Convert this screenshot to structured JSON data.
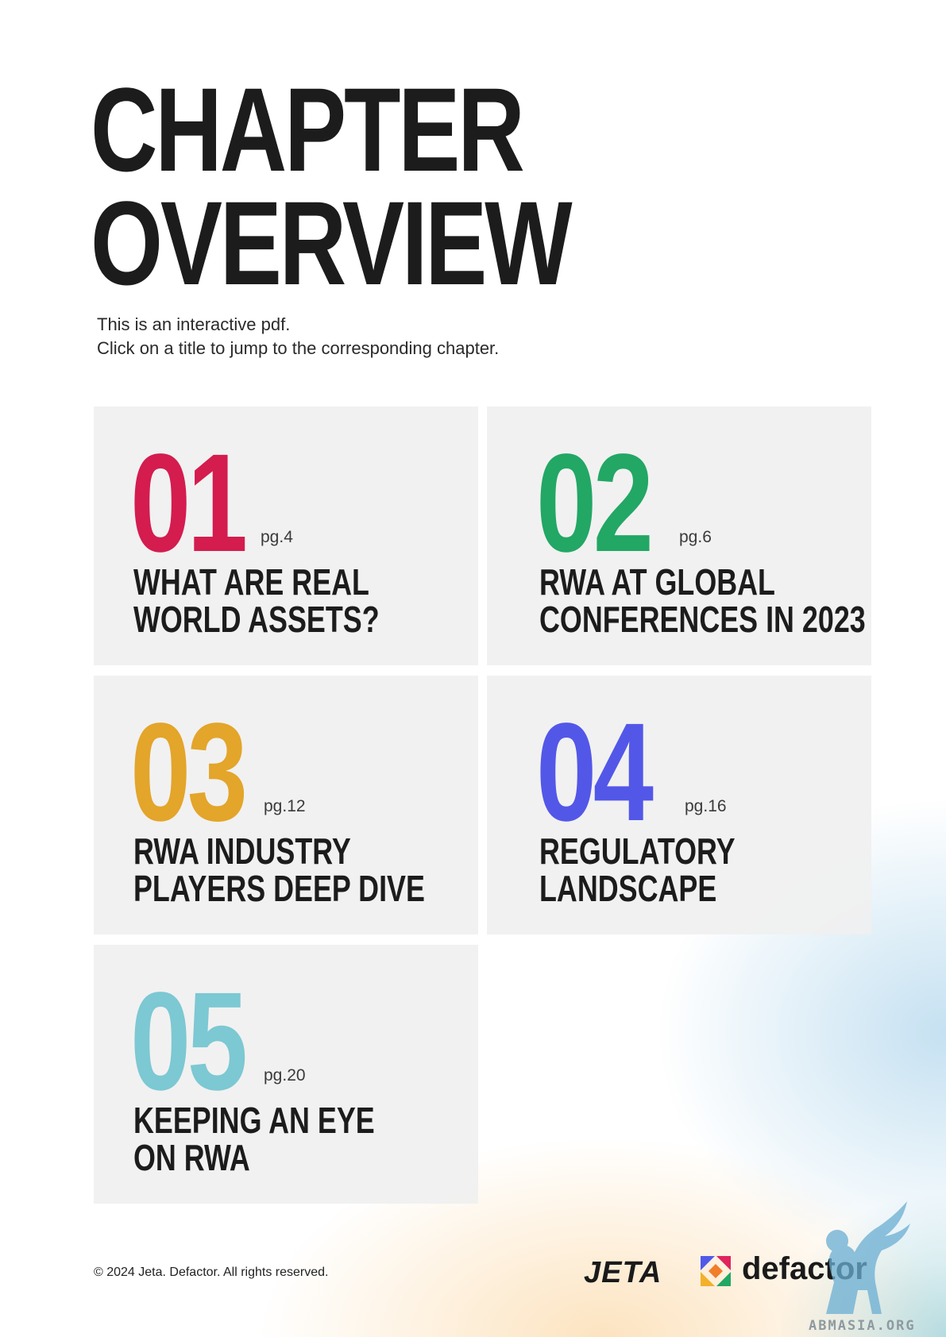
{
  "page": {
    "title_lines": [
      "CHAPTER",
      "OVERVIEW"
    ],
    "intro_lines": [
      "This is an interactive pdf.",
      "Click on a title to jump to the corresponding chapter."
    ]
  },
  "chapters": [
    {
      "number": "01",
      "page": "pg.4",
      "title_lines": [
        "WHAT ARE REAL",
        "WORLD ASSETS?"
      ],
      "color": "#D41C4E"
    },
    {
      "number": "02",
      "page": "pg.6",
      "title_lines": [
        "RWA AT GLOBAL",
        "CONFERENCES IN 2023"
      ],
      "color": "#22A765"
    },
    {
      "number": "03",
      "page": "pg.12",
      "title_lines": [
        "RWA INDUSTRY",
        "PLAYERS DEEP DIVE"
      ],
      "color": "#E3A52A"
    },
    {
      "number": "04",
      "page": "pg.16",
      "title_lines": [
        "REGULATORY",
        "LANDSCAPE"
      ],
      "color": "#5357E8"
    },
    {
      "number": "05",
      "page": "pg.20",
      "title_lines": [
        "KEEPING AN EYE",
        "ON RWA"
      ],
      "color": "#7CC8D3"
    }
  ],
  "footer": {
    "copyright": "© 2024 Jeta. Defactor. All rights reserved.",
    "logos": [
      "JETA",
      "defactor"
    ],
    "defactor_icon": "defactor-triangles-icon",
    "watermark": "ABMASIA.ORG",
    "watermark_icon": "winged-lion-icon"
  }
}
